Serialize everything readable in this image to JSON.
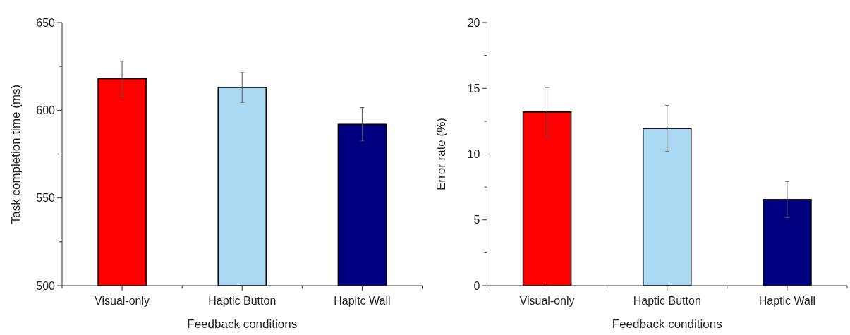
{
  "chart_data": [
    {
      "type": "bar",
      "categories": [
        "Visual-only",
        "Haptic Button",
        "Hapitc Wall"
      ],
      "xlabel": "Feedback conditions",
      "ylabel": "Task completion time (ms)",
      "colors": [
        "#ff0000",
        "#aad8f2",
        "#000080"
      ],
      "values": [
        618,
        613,
        592
      ],
      "errors": [
        10,
        8.5,
        9.5
      ],
      "ylim": [
        500,
        650
      ],
      "yticks": [
        500,
        {
          "value": 525,
          "label": null
        },
        550,
        {
          "value": 575,
          "label": null
        },
        600,
        {
          "value": 625,
          "label": null
        },
        650
      ],
      "grid": false
    },
    {
      "type": "bar",
      "categories": [
        "Visual-only",
        "Haptic Button",
        "Haptic Wall"
      ],
      "xlabel": "Feedback conditions",
      "ylabel": "Error rate (%)",
      "colors": [
        "#ff0000",
        "#aad8f2",
        "#000080"
      ],
      "values": [
        13.2,
        11.95,
        6.55
      ],
      "errors": [
        1.87,
        1.76,
        1.37
      ],
      "ylim": [
        0,
        20
      ],
      "yticks": [
        0,
        {
          "value": 2.5,
          "label": null
        },
        5,
        {
          "value": 7.5,
          "label": null
        },
        10,
        {
          "value": 12.5,
          "label": null
        },
        15,
        {
          "value": 17.5,
          "label": null
        },
        20
      ],
      "grid": false
    }
  ]
}
